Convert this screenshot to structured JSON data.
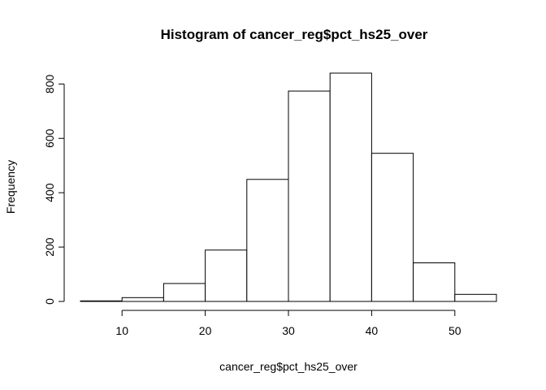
{
  "chart_data": {
    "type": "bar",
    "title": "Histogram of cancer_reg$pct_hs25_over",
    "xlabel": "cancer_reg$pct_hs25_over",
    "ylabel": "Frequency",
    "bin_edges": [
      5,
      10,
      15,
      20,
      25,
      30,
      35,
      40,
      45,
      50,
      55
    ],
    "values": [
      2,
      14,
      66,
      189,
      449,
      774,
      840,
      545,
      142,
      26
    ],
    "xlim": [
      5,
      55
    ],
    "ylim": [
      0,
      840
    ],
    "xticks": [
      10,
      20,
      30,
      40,
      50
    ],
    "yticks": [
      0,
      200,
      400,
      600,
      800
    ],
    "grid": false,
    "legend": "none",
    "colors": {
      "bar_fill": "#ffffff",
      "bar_stroke": "#000000"
    }
  }
}
